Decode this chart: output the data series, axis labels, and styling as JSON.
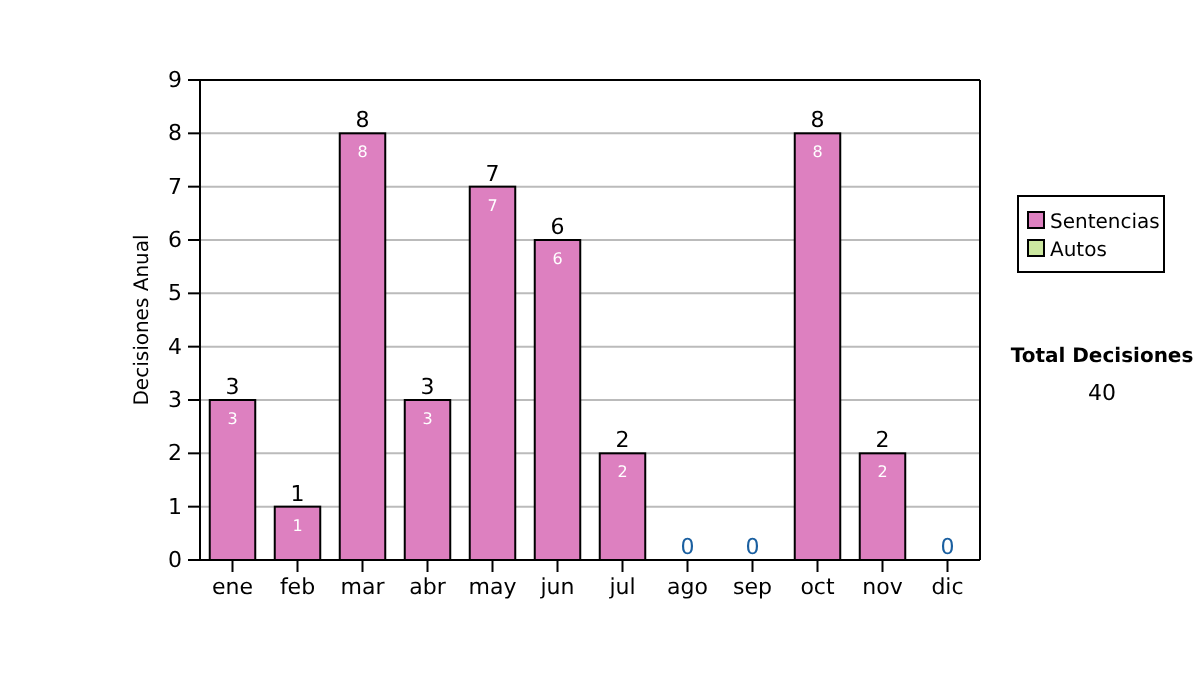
{
  "chart_data": {
    "type": "bar",
    "stacked": true,
    "ylabel": "Decisiones Anual",
    "categories": [
      "ene",
      "feb",
      "mar",
      "abr",
      "may",
      "jun",
      "jul",
      "ago",
      "sep",
      "oct",
      "nov",
      "dic"
    ],
    "series": [
      {
        "name": "Sentencias",
        "color": "#dd80c0",
        "values": [
          3,
          1,
          8,
          3,
          7,
          6,
          2,
          0,
          0,
          8,
          2,
          0
        ],
        "value_labels": [
          "3",
          "1",
          "8",
          "3",
          "7",
          "6",
          "2",
          null,
          null,
          "8",
          "2",
          null
        ]
      },
      {
        "name": "Autos",
        "color": "#cce8a0",
        "values": [
          0,
          0,
          0,
          0,
          0,
          0,
          0,
          0,
          0,
          0,
          0,
          0
        ]
      }
    ],
    "totals": [
      "3",
      "1",
      "8",
      "3",
      "7",
      "6",
      "2",
      "0",
      "0",
      "8",
      "2",
      "0"
    ],
    "ylim": [
      0,
      9
    ],
    "yticks": [
      0,
      1,
      2,
      3,
      4,
      5,
      6,
      7,
      8,
      9
    ],
    "grid": "y",
    "legend": "right",
    "annotations": [
      "Total Decisiones",
      "40"
    ]
  }
}
